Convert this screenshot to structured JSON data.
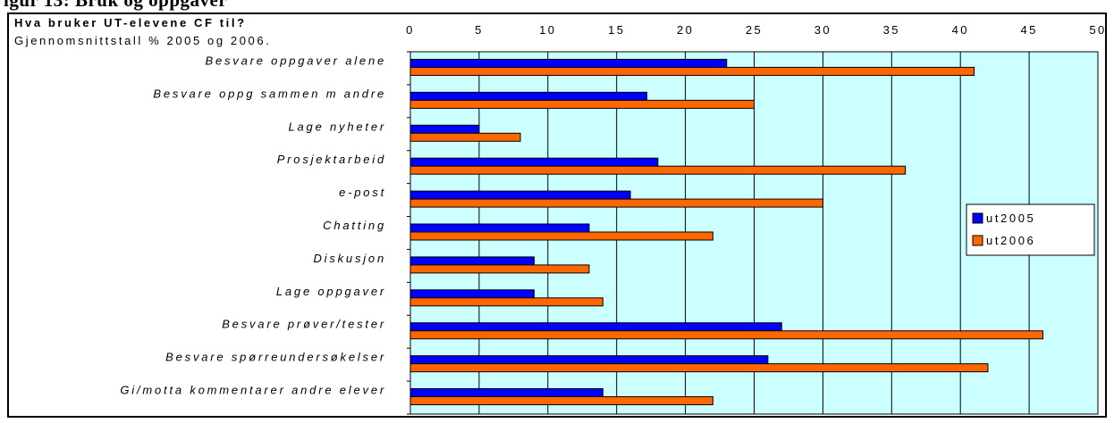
{
  "page": {
    "heading_fragment": "igur 13: Bruk og oppgaver"
  },
  "colors": {
    "plot_background": "#ccffff",
    "series_2005": "#0000ff",
    "series_2006": "#ff6600",
    "gridline": "#000000"
  },
  "chart_data": {
    "type": "bar",
    "orientation": "horizontal",
    "title": "Hva bruker UT-elevene CF til?",
    "subtitle": "Gjennomsnittstall % 2005 og 2006.",
    "categories": [
      "Besvare oppgaver alene",
      "Besvare oppg sammen m andre",
      "Lage nyheter",
      "Prosjektarbeid",
      "e-post",
      "Chatting",
      "Diskusjon",
      "Lage oppgaver",
      "Besvare prøver/tester",
      "Besvare spørreundersøkelser",
      "Gi/motta kommentarer andre elever"
    ],
    "series": [
      {
        "name": "ut2005",
        "values": [
          23,
          17.2,
          5,
          18,
          16,
          13,
          9,
          9,
          27,
          26,
          14
        ]
      },
      {
        "name": "ut2006",
        "values": [
          41,
          25,
          8,
          36,
          30,
          22,
          13,
          14,
          46,
          42,
          22
        ]
      }
    ],
    "xlim": [
      0,
      50
    ],
    "xticks": [
      0,
      5,
      10,
      15,
      20,
      25,
      30,
      35,
      40,
      45,
      50
    ],
    "xaxis_position": "top",
    "grid": true,
    "legend_position": "right"
  }
}
